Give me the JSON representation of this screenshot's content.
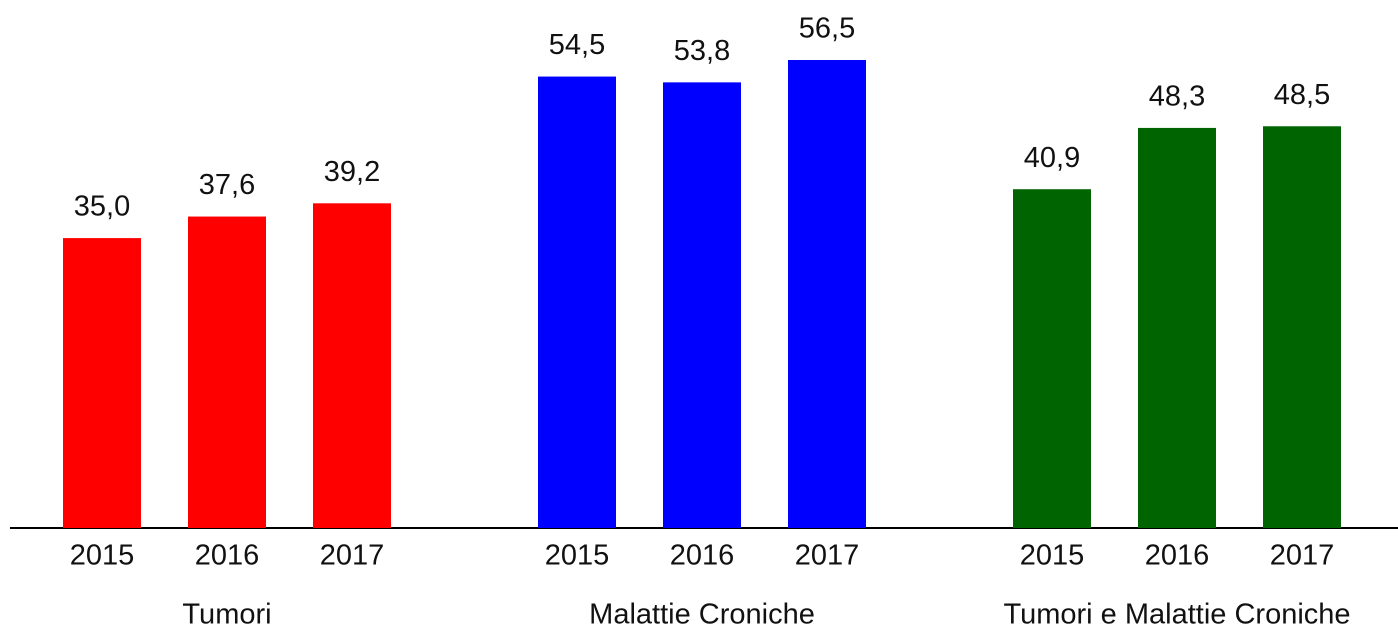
{
  "chart_data": {
    "type": "bar",
    "series": [
      {
        "name": "Tumori",
        "color": "#ff0000",
        "categories": [
          "2015",
          "2016",
          "2017"
        ],
        "values": [
          35.0,
          37.6,
          39.2
        ],
        "value_labels": [
          "35,0",
          "37,6",
          "39,2"
        ]
      },
      {
        "name": "Malattie Croniche",
        "color": "#0000ff",
        "categories": [
          "2015",
          "2016",
          "2017"
        ],
        "values": [
          54.5,
          53.8,
          56.5
        ],
        "value_labels": [
          "54,5",
          "53,8",
          "56,5"
        ]
      },
      {
        "name": "Tumori e Malattie Croniche",
        "color": "#006400",
        "categories": [
          "2015",
          "2016",
          "2017"
        ],
        "values": [
          40.9,
          48.3,
          48.5
        ],
        "value_labels": [
          "40,9",
          "48,3",
          "48,5"
        ]
      }
    ]
  }
}
